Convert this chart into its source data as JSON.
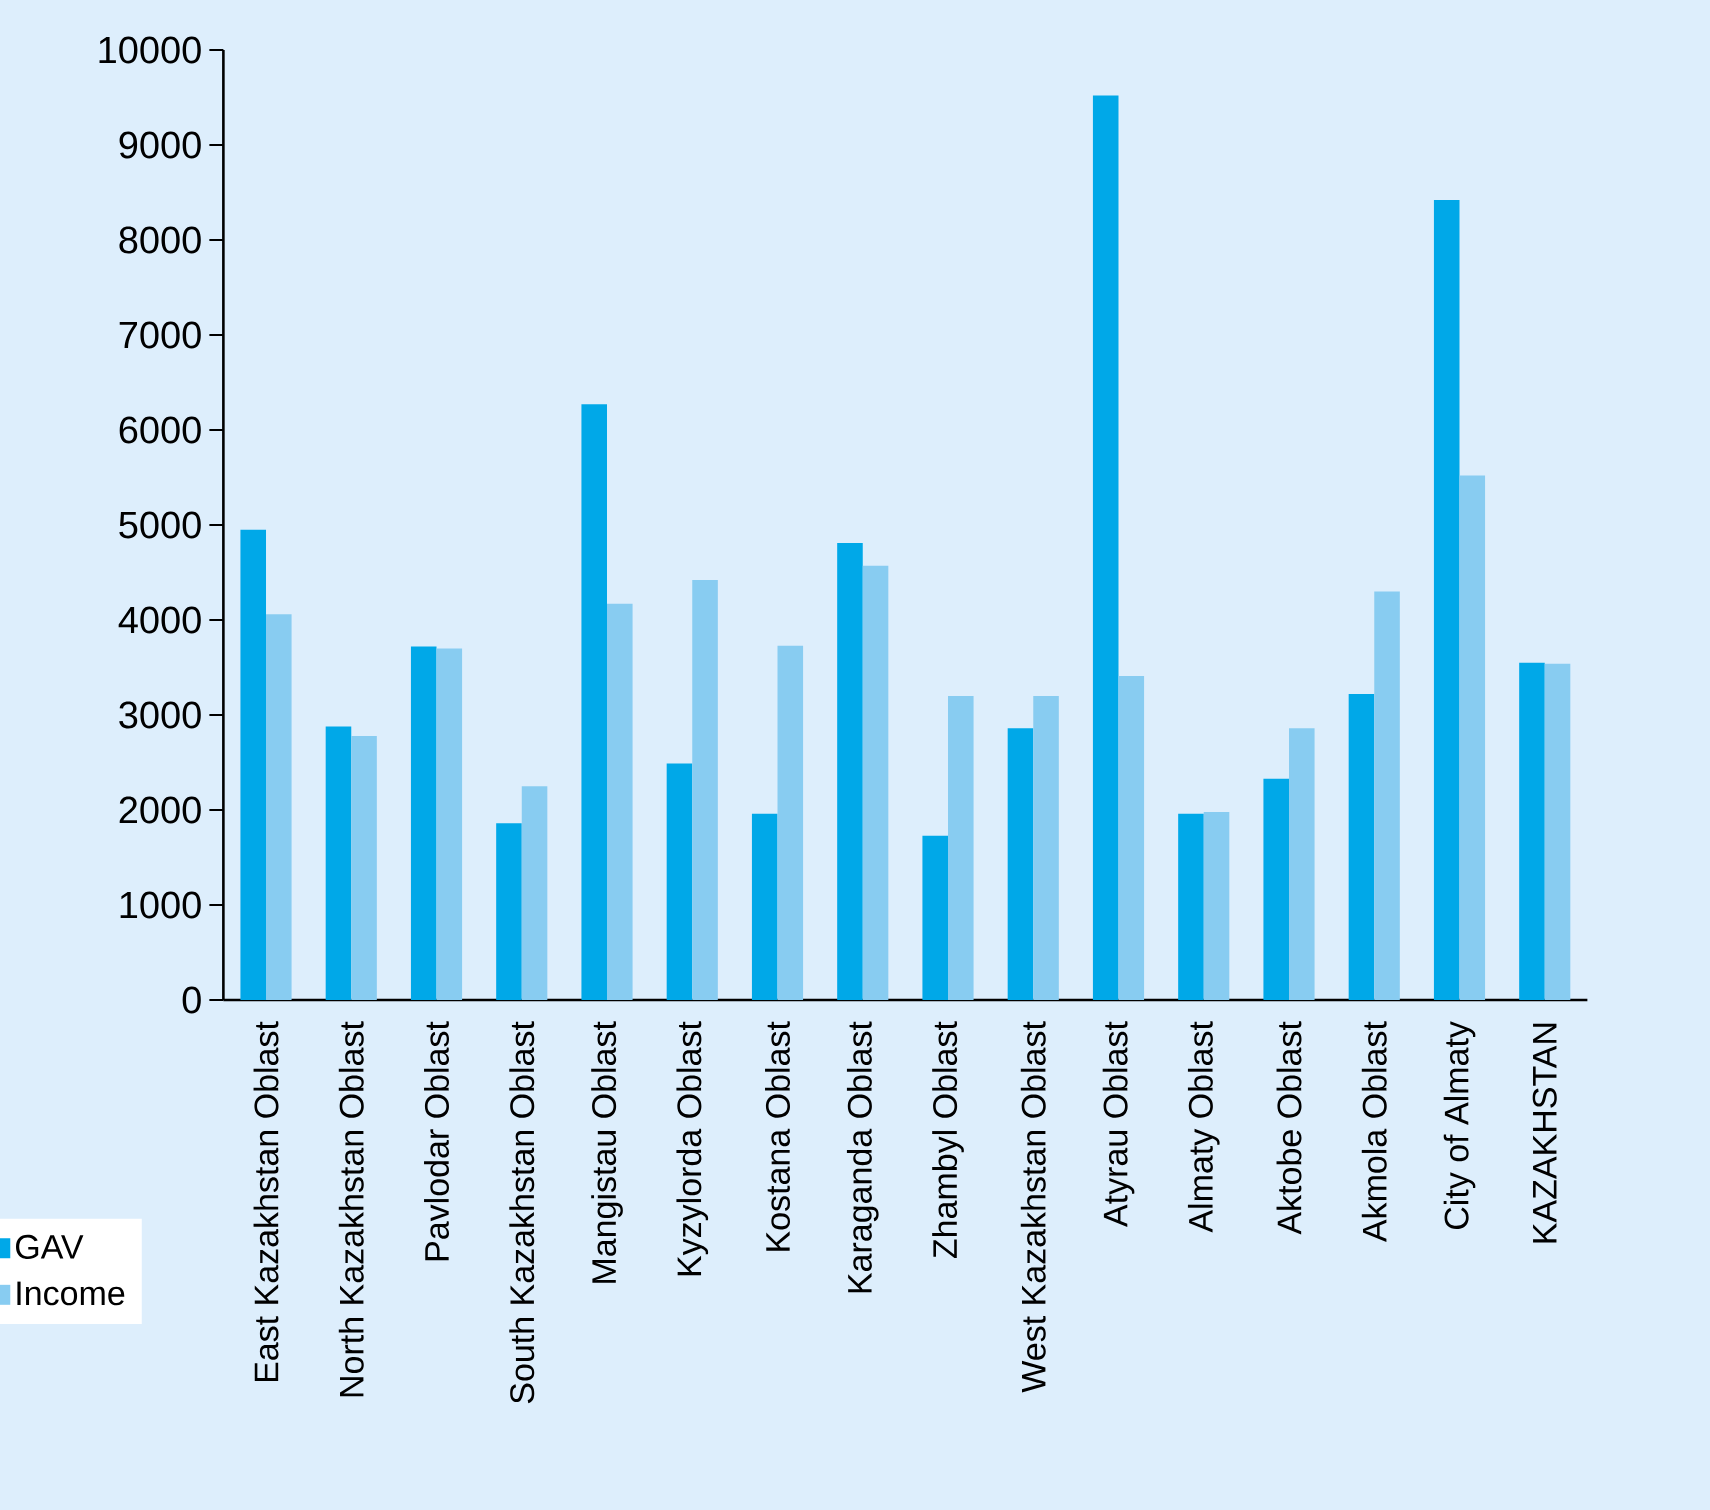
{
  "chart_data": {
    "type": "bar",
    "categories": [
      "East Kazakhstan Oblast",
      "North Kazakhstan Oblast",
      "Pavlodar Oblast",
      "South Kazakhstan Oblast",
      "Mangistau Oblast",
      "Kyzylorda Oblast",
      "Kostana Oblast",
      "Karaganda Oblast",
      "Zhambyl Oblast",
      "West Kazakhstan Oblast",
      "Atyrau Oblast",
      "Almaty Oblast",
      "Aktobe Oblast",
      "Akmola Oblast",
      "City of Almaty",
      "KAZAKHSTAN"
    ],
    "series": [
      {
        "name": "GAV",
        "color": "#00a8e8",
        "values": [
          4950,
          2880,
          3720,
          1860,
          6270,
          2490,
          1960,
          4810,
          1730,
          2860,
          9520,
          1960,
          2330,
          3220,
          8420,
          3550
        ]
      },
      {
        "name": "Income",
        "color": "#88ccf1",
        "values": [
          4060,
          2780,
          3700,
          2250,
          4170,
          4420,
          3730,
          4570,
          3200,
          3200,
          3410,
          1980,
          2860,
          4300,
          5520,
          3540
        ]
      }
    ],
    "ylim": [
      0,
      10000
    ],
    "yticks": [
      0,
      1000,
      2000,
      3000,
      4000,
      5000,
      6000,
      7000,
      8000,
      9000,
      10000
    ],
    "legend": "bottom left"
  }
}
